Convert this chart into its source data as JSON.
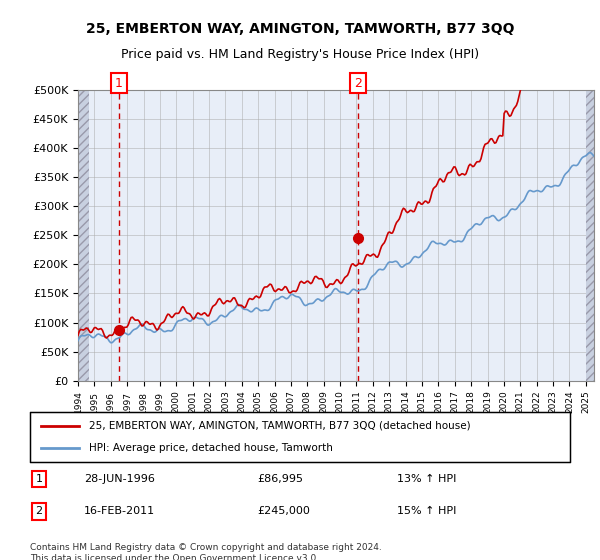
{
  "title1": "25, EMBERTON WAY, AMINGTON, TAMWORTH, B77 3QQ",
  "title2": "Price paid vs. HM Land Registry's House Price Index (HPI)",
  "legend_label1": "25, EMBERTON WAY, AMINGTON, TAMWORTH, B77 3QQ (detached house)",
  "legend_label2": "HPI: Average price, detached house, Tamworth",
  "annotation1_label": "1",
  "annotation1_date": "28-JUN-1996",
  "annotation1_price": "£86,995",
  "annotation1_hpi": "13% ↑ HPI",
  "annotation2_label": "2",
  "annotation2_date": "16-FEB-2011",
  "annotation2_price": "£245,000",
  "annotation2_hpi": "15% ↑ HPI",
  "footer": "Contains HM Land Registry data © Crown copyright and database right 2024.\nThis data is licensed under the Open Government Licence v3.0.",
  "red_color": "#cc0000",
  "blue_color": "#6699cc",
  "bg_hatch_color": "#d0d8e8",
  "plot_bg_color": "#e8eef8",
  "grid_color": "#aaaaaa",
  "ylim": [
    0,
    500000
  ],
  "yticks": [
    0,
    50000,
    100000,
    150000,
    200000,
    250000,
    300000,
    350000,
    400000,
    450000,
    500000
  ],
  "sale1_year": 1996.5,
  "sale1_value": 86995,
  "sale2_year": 2011.1,
  "sale2_value": 245000,
  "xmin": 1994,
  "xmax": 2025.5
}
